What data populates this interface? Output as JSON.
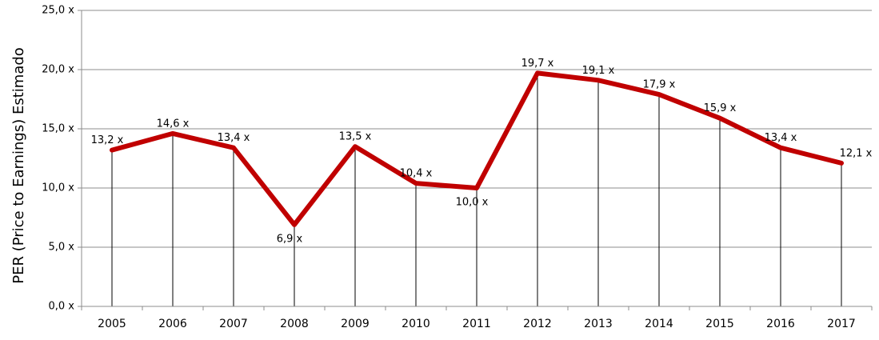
{
  "chart_data": {
    "type": "line",
    "title": "",
    "xlabel": "",
    "ylabel": "PER (Price to Earnings) Estimado",
    "categories": [
      "2005",
      "2006",
      "2007",
      "2008",
      "2009",
      "2010",
      "2011",
      "2012",
      "2013",
      "2014",
      "2015",
      "2016",
      "2017"
    ],
    "series": [
      {
        "name": "",
        "values": [
          13.2,
          14.6,
          13.4,
          6.9,
          13.5,
          10.4,
          10.0,
          19.7,
          19.1,
          17.9,
          15.9,
          13.4,
          12.1
        ],
        "labels": [
          "13,2 x",
          "14,6 x",
          "13,4 x",
          "6,9 x",
          "13,5 x",
          "10,4 x",
          "10,0 x",
          "19,7 x",
          "19,1 x",
          "17,9 x",
          "15,9 x",
          "13,4 x",
          "12,1 x"
        ],
        "color": "#c00000"
      }
    ],
    "ylim": [
      0,
      25
    ],
    "yticks": [
      0,
      5,
      10,
      15,
      20,
      25
    ],
    "ytick_labels": [
      "0,0 x",
      "5,0 x",
      "10,0 x",
      "15,0 x",
      "20,0 x",
      "25,0 x"
    ],
    "grid": true,
    "drop_lines": true,
    "legend": "none"
  }
}
